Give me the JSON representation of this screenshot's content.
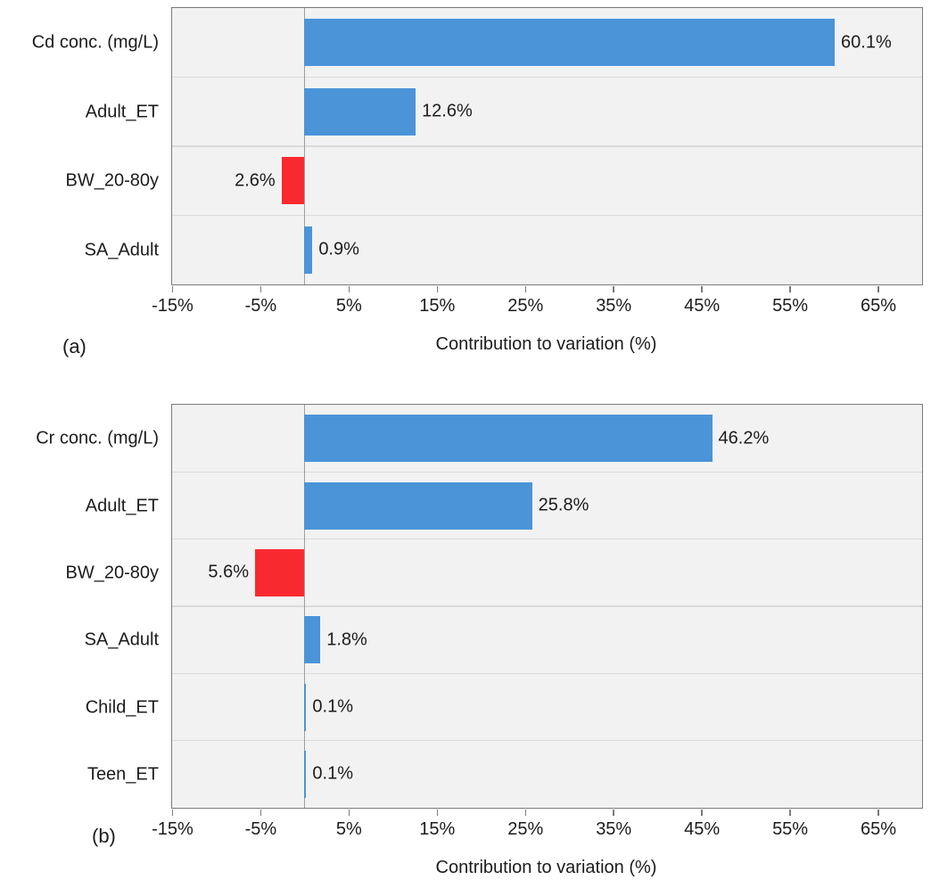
{
  "colors": {
    "positive_bar": "#4b94d8",
    "negative_bar": "#f92a2f",
    "plot_background": "#f2f2f2",
    "plot_border": "#7a7a7a",
    "zero_line": "#9e9e9e",
    "row_separator": "#dbdbdb",
    "text": "#1c1c1c"
  },
  "chart_data": [
    {
      "type": "bar",
      "orientation": "horizontal",
      "panel_label": "(a)",
      "xlabel": "Contribution to variation (%)",
      "categories": [
        "Cd conc. (mg/L)",
        "Adult_ET",
        "BW_20-80y",
        "SA_Adult"
      ],
      "values": [
        60.1,
        12.6,
        -2.6,
        0.9
      ],
      "bar_labels": [
        "60.1%",
        "12.6%",
        "2.6%",
        "0.9%"
      ],
      "bar_colors": [
        "#4b94d8",
        "#4b94d8",
        "#f92a2f",
        "#4b94d8"
      ],
      "axis": {
        "min": -15,
        "max": 70,
        "tick_values": [
          -15,
          -5,
          5,
          15,
          25,
          35,
          45,
          55,
          65
        ],
        "tick_labels": [
          "-15%",
          "-5%",
          "5%",
          "15%",
          "25%",
          "35%",
          "45%",
          "55%",
          "65%"
        ]
      },
      "grid": "row-separators",
      "legend": "none"
    },
    {
      "type": "bar",
      "orientation": "horizontal",
      "panel_label": "(b)",
      "xlabel": "Contribution to variation (%)",
      "categories": [
        "Cr conc. (mg/L)",
        "Adult_ET",
        "BW_20-80y",
        "SA_Adult",
        "Child_ET",
        "Teen_ET"
      ],
      "values": [
        46.2,
        25.8,
        -5.6,
        1.8,
        0.1,
        0.1
      ],
      "bar_labels": [
        "46.2%",
        "25.8%",
        "5.6%",
        "1.8%",
        "0.1%",
        "0.1%"
      ],
      "bar_colors": [
        "#4b94d8",
        "#4b94d8",
        "#f92a2f",
        "#4b94d8",
        "#4b94d8",
        "#4b94d8"
      ],
      "axis": {
        "min": -15,
        "max": 70,
        "tick_values": [
          -15,
          -5,
          5,
          15,
          25,
          35,
          45,
          55,
          65
        ],
        "tick_labels": [
          "-15%",
          "-5%",
          "5%",
          "15%",
          "25%",
          "35%",
          "45%",
          "55%",
          "65%"
        ]
      },
      "grid": "row-separators",
      "legend": "none"
    }
  ]
}
